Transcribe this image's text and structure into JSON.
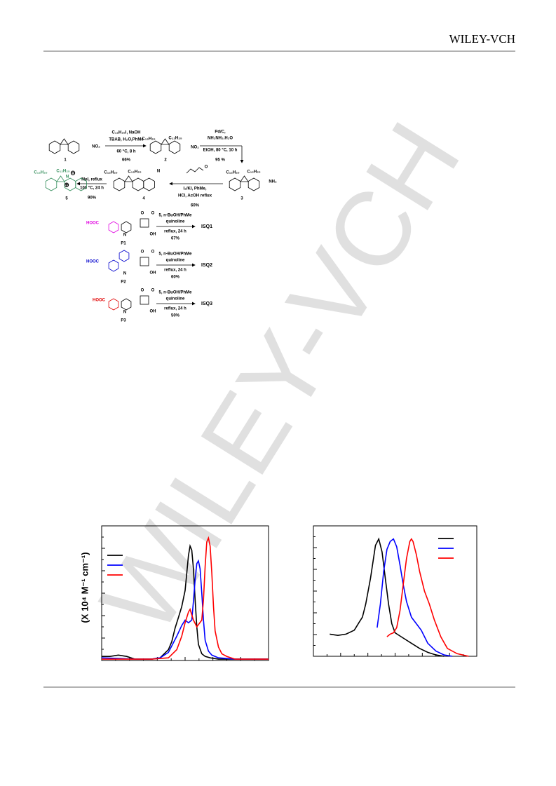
{
  "header": {
    "publisher": "WILEY-VCH"
  },
  "watermark": "WILEY-VCH",
  "scheme": {
    "c1": {
      "label": "1",
      "group": "NO₂"
    },
    "step1": {
      "reagents": "C₁₂H₂₅I, NaOH",
      "line2": "TBAB, H₂O,PhMe",
      "line3": "60 °C, 8 h",
      "yield": "66%"
    },
    "c2": {
      "label": "2",
      "sub_a": "C₁₂H₂₅",
      "sub_b": "C₁₂H₂₅",
      "group": "NO₂"
    },
    "step2": {
      "reagents": "Pd/C,",
      "line2": "NH₂NH₂.H₂O",
      "line3": "EtOH, 80 °C, 10 h",
      "yield": "95 %"
    },
    "c3": {
      "label": "3",
      "sub_a": "C₁₂H₂₅",
      "sub_b": "C₁₂H₂₅",
      "group": "NH₂"
    },
    "step3": {
      "aldehyde_o": "O",
      "reagents": "I₂/KI, PhMe,",
      "line2": "HCl, AcOH reflux",
      "yield": "60%"
    },
    "c4": {
      "label": "4",
      "sub_a": "C₁₂H₂₅",
      "sub_b": "C₁₂H₂₅",
      "hetero": "N"
    },
    "step4": {
      "reagents": "MeI, reflux",
      "line2": "100 °C, 24 h",
      "yield": "90%"
    },
    "c5": {
      "label": "5",
      "sub_a": "C₁₂H₂₅",
      "sub_b": "C₁₂H₂₅",
      "hetero": "N",
      "charge": "⊕",
      "anion": "⊖"
    },
    "routes": [
      {
        "acid": "HOOC",
        "precursor": "P1",
        "reagents": "5, n-BuOH/PhMe",
        "line2": "quinoline",
        "line3": "reflux, 24 h",
        "yield": "67%",
        "product": "ISQ1",
        "o1": "O",
        "o2": "O",
        "oh": "OH",
        "n": "N"
      },
      {
        "acid": "HOOC",
        "precursor": "P2",
        "reagents": "5, n-BuOH/PhMe",
        "line2": "quinoline",
        "line3": "reflux, 24 h",
        "yield": "60%",
        "product": "ISQ2",
        "o1": "O",
        "o2": "O",
        "oh": "OH",
        "n": "N"
      },
      {
        "acid": "HOOC",
        "precursor": "P3",
        "reagents": "5, n-BuOH/PhMe",
        "line2": "quinoline",
        "line3": "reflux, 24 h",
        "yield": "50%",
        "product": "ISQ3",
        "o1": "O",
        "o2": "O",
        "oh": "OH",
        "n": "N"
      }
    ]
  },
  "figure": {
    "y_axis_label": "(X 10⁴ M⁻¹ cm⁻¹)",
    "panels": [
      {
        "xlim": [
          0,
          100
        ],
        "ylim": [
          0,
          100
        ],
        "series": [
          {
            "color": "#000000",
            "x": [
              0,
              5,
              10,
              15,
              20,
              25,
              30,
              35,
              40,
              42,
              44,
              46,
              48,
              50,
              51,
              52,
              53,
              54,
              55,
              56,
              57,
              58,
              60,
              62,
              65,
              70,
              80,
              100
            ],
            "values": [
              3,
              3,
              4,
              3,
              1,
              1,
              1,
              2,
              8,
              14,
              24,
              32,
              40,
              52,
              65,
              78,
              85,
              82,
              68,
              45,
              25,
              12,
              5,
              3,
              2,
              1,
              1,
              1
            ]
          },
          {
            "color": "#0000ff",
            "x": [
              0,
              20,
              30,
              35,
              40,
              45,
              48,
              50,
              52,
              54,
              55,
              56,
              57,
              58,
              59,
              60,
              61,
              62,
              64,
              66,
              70,
              80,
              100
            ],
            "values": [
              2,
              1,
              1,
              2,
              6,
              18,
              26,
              30,
              28,
              30,
              44,
              60,
              72,
              74,
              68,
              50,
              30,
              15,
              7,
              4,
              2,
              1,
              1
            ]
          },
          {
            "color": "#ff0000",
            "x": [
              0,
              30,
              40,
              45,
              48,
              50,
              52,
              53,
              55,
              57,
              60,
              61,
              62,
              63,
              64,
              65,
              66,
              67,
              68,
              70,
              72,
              75,
              80,
              100
            ],
            "values": [
              1,
              1,
              2,
              8,
              18,
              28,
              36,
              38,
              30,
              25,
              30,
              45,
              70,
              88,
              91,
              85,
              65,
              40,
              22,
              10,
              5,
              3,
              1,
              1
            ]
          }
        ]
      },
      {
        "xlim": [
          0,
          100
        ],
        "ylim": [
          0,
          100
        ],
        "series": [
          {
            "color": "#000000",
            "x": [
              10,
              15,
              20,
              25,
              28,
              30,
              32,
              35,
              38,
              40,
              42,
              44,
              46,
              48,
              50,
              55,
              60,
              65,
              70,
              75,
              80
            ],
            "values": [
              17,
              16,
              17,
              20,
              26,
              30,
              40,
              60,
              85,
              90,
              80,
              60,
              40,
              25,
              18,
              14,
              10,
              6,
              3,
              1,
              0
            ]
          },
          {
            "color": "#0000ff",
            "x": [
              39,
              41,
              43,
              45,
              47,
              49,
              51,
              53,
              55,
              57,
              60,
              63,
              66,
              70,
              75,
              80,
              85
            ],
            "values": [
              22,
              40,
              65,
              82,
              88,
              90,
              84,
              70,
              55,
              42,
              30,
              25,
              20,
              10,
              4,
              1,
              0
            ]
          },
          {
            "color": "#ff0000",
            "x": [
              45,
              47,
              49,
              51,
              53,
              55,
              57,
              59,
              60,
              61,
              63,
              65,
              68,
              71,
              74,
              78,
              82,
              88,
              95
            ],
            "values": [
              15,
              17,
              18,
              22,
              35,
              55,
              75,
              88,
              90,
              88,
              78,
              65,
              50,
              40,
              28,
              15,
              6,
              2,
              0
            ]
          }
        ]
      }
    ]
  }
}
